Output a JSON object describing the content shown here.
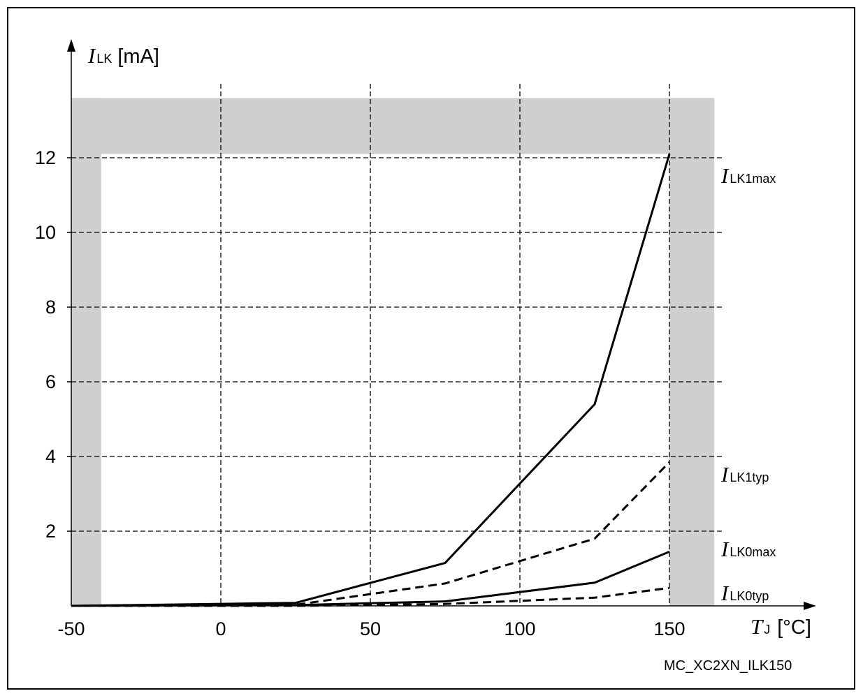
{
  "chart_data": {
    "type": "line",
    "y_axis_title": {
      "symbol": "I",
      "subscript": "LK",
      "unit": "[mA]"
    },
    "x_axis_title": {
      "symbol": "T",
      "subscript": "J",
      "unit": "[°C]"
    },
    "figure_id": "MC_XC2XN_ILK150",
    "xlim": [
      -50,
      165
    ],
    "ylim": [
      0,
      13.6
    ],
    "x_ticks": [
      -50,
      0,
      50,
      100,
      150
    ],
    "y_ticks": [
      2,
      4,
      6,
      8,
      10,
      12
    ],
    "grid": true,
    "shaded_region": {
      "x_outside": [
        -40,
        150
      ],
      "y_above": 12.1
    },
    "series": [
      {
        "name": "ILK1max",
        "symbol": "I",
        "subscript": "LK1max",
        "style": "solid",
        "x": [
          -50,
          25,
          75,
          125,
          150
        ],
        "y": [
          0.0,
          0.08,
          1.15,
          5.4,
          12.1
        ]
      },
      {
        "name": "ILK1typ",
        "symbol": "I",
        "subscript": "LK1typ",
        "style": "dashed",
        "x": [
          -50,
          25,
          75,
          125,
          150
        ],
        "y": [
          0.0,
          0.03,
          0.6,
          1.8,
          3.85
        ]
      },
      {
        "name": "ILK0max",
        "symbol": "I",
        "subscript": "LK0max",
        "style": "solid",
        "x": [
          -50,
          25,
          75,
          125,
          150
        ],
        "y": [
          0.0,
          0.02,
          0.12,
          0.62,
          1.45
        ]
      },
      {
        "name": "ILK0typ",
        "symbol": "I",
        "subscript": "LK0typ",
        "style": "dashed",
        "x": [
          -50,
          25,
          75,
          125,
          150
        ],
        "y": [
          0.0,
          0.0,
          0.05,
          0.22,
          0.48
        ]
      }
    ]
  }
}
